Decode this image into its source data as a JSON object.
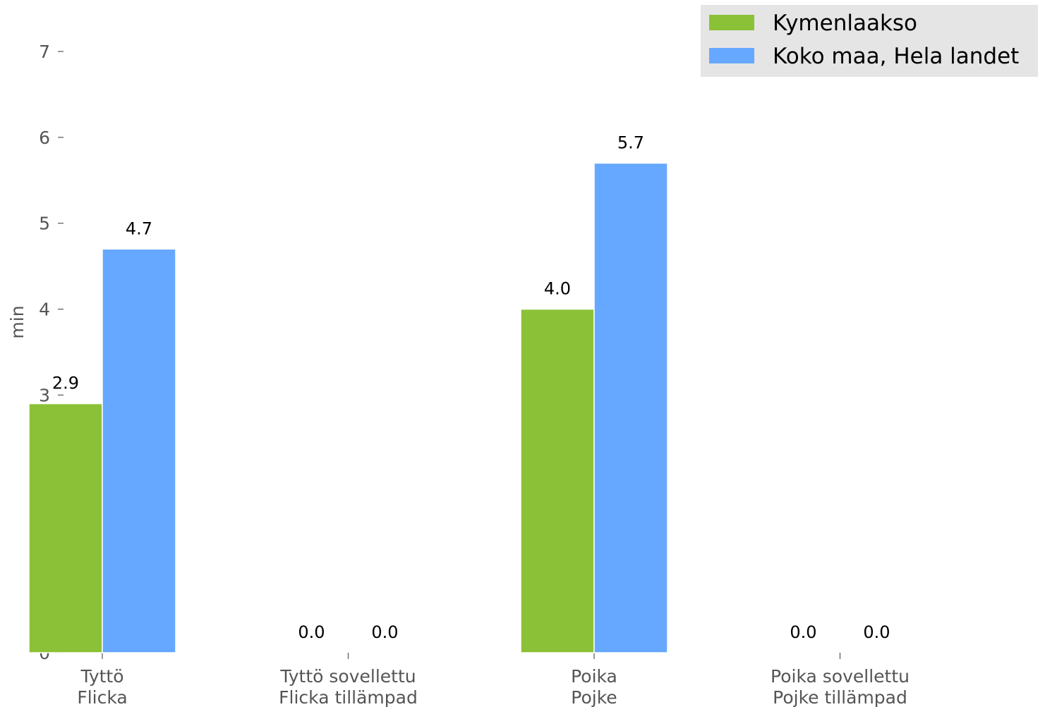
{
  "chart_data": {
    "type": "bar",
    "categories": [
      [
        "Tyttö",
        "Flicka"
      ],
      [
        "Tyttö sovellettu",
        "Flicka tillämpad"
      ],
      [
        "Poika",
        "Pojke"
      ],
      [
        "Poika sovellettu",
        "Pojke tillämpad"
      ]
    ],
    "series": [
      {
        "name": "Kymenlaakso",
        "color": "#8bc136",
        "values": [
          2.9,
          0.0,
          4.0,
          0.0
        ],
        "labels": [
          "2.9",
          "0.0",
          "4.0",
          "0.0"
        ]
      },
      {
        "name": "Koko maa, Hela landet",
        "color": "#66a8ff",
        "values": [
          4.7,
          0.0,
          5.7,
          0.0
        ],
        "labels": [
          "4.7",
          "0.0",
          "5.7",
          "0.0"
        ]
      }
    ],
    "ylabel": "min",
    "xlabel": "",
    "ylim": [
      0,
      7
    ],
    "yticks": [
      0,
      1,
      2,
      3,
      4,
      5,
      6,
      7
    ],
    "grid": false,
    "legend_position": "top-right",
    "legend_background": "#e5e5e5"
  }
}
